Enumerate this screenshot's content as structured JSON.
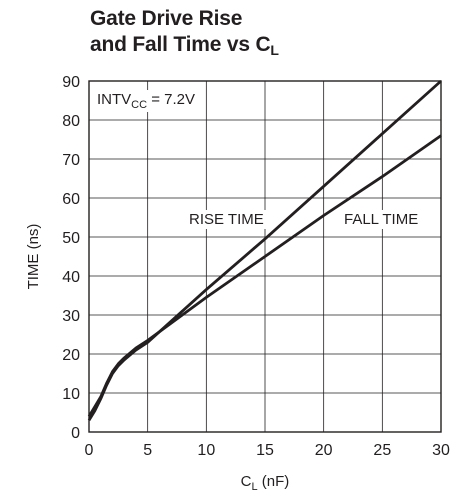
{
  "chart_data": {
    "type": "line",
    "title_line1": "Gate Drive Rise",
    "title_line2_prefix": "and Fall Time vs C",
    "title_line2_sub": "L",
    "xlabel_main": "C",
    "xlabel_sub": "L",
    "xlabel_unit": " (nF)",
    "ylabel": "TIME (ns)",
    "annotation_prefix": "INTV",
    "annotation_sub": "CC",
    "annotation_suffix": " = 7.2V",
    "xlim": [
      0,
      30
    ],
    "ylim": [
      0,
      90
    ],
    "xticks": [
      0,
      5,
      10,
      15,
      20,
      25,
      30
    ],
    "yticks": [
      0,
      10,
      20,
      30,
      40,
      50,
      60,
      70,
      80,
      90
    ],
    "grid": true,
    "series": [
      {
        "name": "RISE TIME",
        "x": [
          0,
          0.5,
          1,
          1.5,
          2,
          2.5,
          3,
          4,
          5,
          10,
          15,
          20,
          25,
          30
        ],
        "y": [
          3,
          5.5,
          8.5,
          12,
          15,
          17,
          18.5,
          21,
          23,
          36.5,
          49.5,
          63,
          76.5,
          90
        ]
      },
      {
        "name": "FALL TIME",
        "x": [
          0,
          0.5,
          1,
          1.5,
          2,
          2.5,
          3,
          4,
          5,
          10,
          15,
          20,
          25,
          30
        ],
        "y": [
          4,
          6.5,
          9,
          12.5,
          15.5,
          17.5,
          19,
          21.5,
          23.5,
          34.5,
          45,
          55.5,
          65.5,
          76
        ]
      }
    ]
  }
}
